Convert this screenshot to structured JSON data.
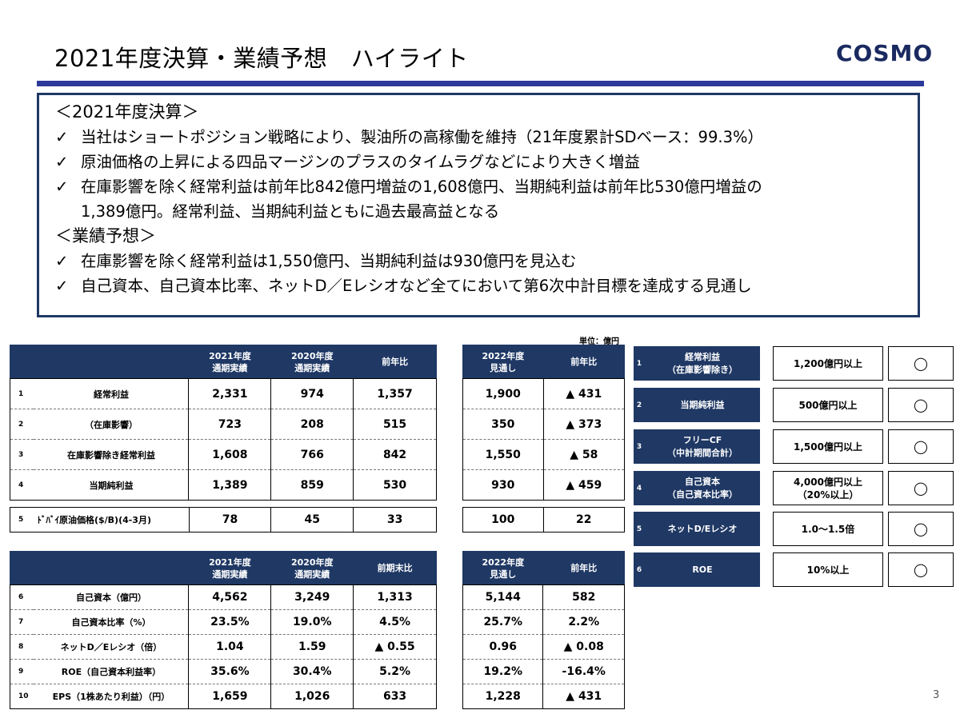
{
  "header": {
    "title": "2021年度決算・業績予想　ハイライト",
    "logo": "COSMO"
  },
  "summary": {
    "section1_title": "＜2021年度決算＞",
    "section1_items": [
      "当社はショートポジション戦略により、製油所の高稼働を維持（21年度累計SDベース：99.3%）",
      "原油価格の上昇による四品マージンのプラスのタイムラグなどにより大きく増益",
      [
        "在庫影響を除く経常利益は前年比842億円増益の1,608億円、当期純利益は前年比530億円増益の",
        "1,389億円。経常利益、当期純利益ともに過去最高益となる"
      ]
    ],
    "section2_title": "＜業績予想＞",
    "section2_items": [
      "在庫影響を除く経常利益は1,550億円、当期純利益は930億円を見込む",
      "自己資本、自己資本比率、ネットD／Eレシオなど全てにおいて第6次中計目標を達成する見通し"
    ],
    "check_mark": "✓"
  },
  "unit_label": "単位：億円",
  "table1": {
    "headers": [
      [
        "2021年度",
        "通期実績"
      ],
      [
        "2020年度",
        "通期実績"
      ],
      [
        "前年比"
      ]
    ],
    "forecast_headers": [
      [
        "2022年度",
        "見通し"
      ],
      [
        "前年比"
      ]
    ],
    "rows": [
      {
        "num": "1",
        "label": "経常利益",
        "v2021": "2,331",
        "v2020": "974",
        "yoy": "1,357",
        "f2022": "1,900",
        "fyoy": "▲ 431"
      },
      {
        "num": "2",
        "label": "（在庫影響）",
        "v2021": "723",
        "v2020": "208",
        "yoy": "515",
        "f2022": "350",
        "fyoy": "▲ 373"
      },
      {
        "num": "3",
        "label": "在庫影響除き経常利益",
        "v2021": "1,608",
        "v2020": "766",
        "yoy": "842",
        "f2022": "1,550",
        "fyoy": "▲ 58"
      },
      {
        "num": "4",
        "label": "当期純利益",
        "v2021": "1,389",
        "v2020": "859",
        "yoy": "530",
        "f2022": "930",
        "fyoy": "▲ 459"
      }
    ],
    "dubai": {
      "num": "5",
      "label": "ﾄﾞﾊﾞｲ原油価格($/B)(4-3月)",
      "v2021": "78",
      "v2020": "45",
      "yoy": "33",
      "f2022": "100",
      "fyoy": "22"
    }
  },
  "table2": {
    "headers": [
      [
        "2021年度",
        "通期実績"
      ],
      [
        "2020年度",
        "通期実績"
      ],
      [
        "前期末比"
      ]
    ],
    "forecast_headers": [
      [
        "2022年度",
        "見通し"
      ],
      [
        "前年比"
      ]
    ],
    "rows": [
      {
        "num": "6",
        "label": "自己資本（億円）",
        "v2021": "4,562",
        "v2020": "3,249",
        "yoy": "1,313",
        "f2022": "5,144",
        "fyoy": "582"
      },
      {
        "num": "7",
        "label": "自己資本比率（%）",
        "v2021": "23.5%",
        "v2020": "19.0%",
        "yoy": "4.5%",
        "f2022": "25.7%",
        "fyoy": "2.2%"
      },
      {
        "num": "8",
        "label": "ネットD／Eレシオ（倍）",
        "v2021": "1.04",
        "v2020": "1.59",
        "yoy": "▲ 0.55",
        "f2022": "0.96",
        "fyoy": "▲ 0.08"
      },
      {
        "num": "9",
        "label": "ROE（自己資本利益率）",
        "v2021": "35.6%",
        "v2020": "30.4%",
        "yoy": "5.2%",
        "f2022": "19.2%",
        "fyoy": "-16.4%"
      },
      {
        "num": "10",
        "label": "EPS（1株あたり利益）（円）",
        "v2021": "1,659",
        "v2020": "1,026",
        "yoy": "633",
        "f2022": "1,228",
        "fyoy": "▲ 431"
      }
    ]
  },
  "targets": [
    {
      "num": "1",
      "name": [
        "経常利益",
        "（在庫影響除き）"
      ],
      "value": [
        "1,200億円以上"
      ],
      "mark": "◯"
    },
    {
      "num": "2",
      "name": [
        "当期純利益"
      ],
      "value": [
        "500億円以上"
      ],
      "mark": "◯"
    },
    {
      "num": "3",
      "name": [
        "フリーCF",
        "（中計期間合計）"
      ],
      "value": [
        "1,500億円以上"
      ],
      "mark": "◯"
    },
    {
      "num": "4",
      "name": [
        "自己資本",
        "（自己資本比率）"
      ],
      "value": [
        "4,000億円以上",
        "（20%以上）"
      ],
      "mark": "◯"
    },
    {
      "num": "5",
      "name": [
        "ネットD/Eレシオ"
      ],
      "value": [
        "1.0～1.5倍"
      ],
      "mark": "◯"
    },
    {
      "num": "6",
      "name": [
        "ROE"
      ],
      "value": [
        "10%以上"
      ],
      "mark": "◯"
    }
  ],
  "page_number": "3",
  "colors": {
    "navy": "#1f3864",
    "rule": "#2d3a9a"
  }
}
